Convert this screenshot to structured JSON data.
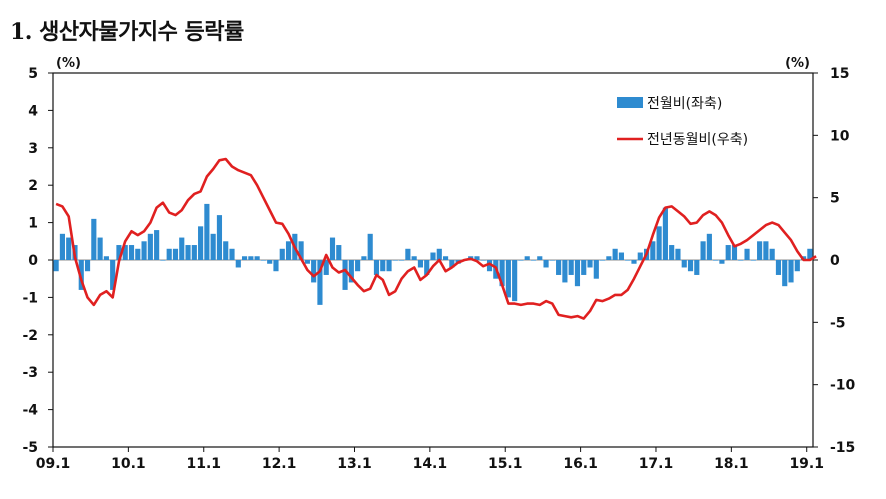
{
  "title": "1. 생산자물가지수 등락률",
  "chart_data": {
    "type": "bar+line",
    "left_unit": "(%)",
    "right_unit": "(%)",
    "x_tick_labels": [
      "09.1",
      "10.1",
      "11.1",
      "12.1",
      "13.1",
      "14.1",
      "15.1",
      "16.1",
      "17.1",
      "18.1",
      "19.1"
    ],
    "y_left": {
      "lim": [
        -5,
        5
      ],
      "ticks": [
        5,
        4,
        3,
        2,
        1,
        0,
        -1,
        -2,
        -3,
        -4,
        -5
      ]
    },
    "y_right": {
      "lim": [
        -15,
        15
      ],
      "ticks": [
        15,
        10,
        5,
        0,
        -5,
        -10,
        -15
      ]
    },
    "legend_position": "top-right",
    "start_month": "2009-01",
    "series": [
      {
        "name": "전월비(좌축)",
        "type": "bar",
        "axis": "left",
        "color": "#2e8bd0",
        "values": [
          -0.3,
          0.7,
          0.6,
          0.4,
          -0.8,
          -0.3,
          1.1,
          0.6,
          0.1,
          -0.8,
          0.4,
          0.4,
          0.4,
          0.3,
          0.5,
          0.7,
          0.8,
          0.0,
          0.3,
          0.3,
          0.6,
          0.4,
          0.4,
          0.9,
          1.5,
          0.7,
          1.2,
          0.5,
          0.3,
          -0.2,
          0.1,
          0.1,
          0.1,
          0.0,
          -0.1,
          -0.3,
          0.3,
          0.5,
          0.7,
          0.5,
          -0.1,
          -0.6,
          -1.2,
          -0.4,
          0.6,
          0.4,
          -0.8,
          -0.6,
          -0.3,
          0.1,
          0.7,
          -0.4,
          -0.3,
          -0.3,
          0.0,
          0.0,
          0.3,
          0.1,
          -0.2,
          -0.4,
          0.2,
          0.3,
          0.1,
          -0.2,
          -0.1,
          0.0,
          0.1,
          0.1,
          0.0,
          -0.3,
          -0.5,
          -0.7,
          -1.0,
          -1.1,
          0.0,
          0.1,
          0.0,
          0.1,
          -0.2,
          0.0,
          -0.4,
          -0.6,
          -0.4,
          -0.7,
          -0.4,
          -0.2,
          -0.5,
          0.0,
          0.1,
          0.3,
          0.2,
          0.0,
          -0.1,
          0.2,
          0.3,
          0.5,
          0.9,
          1.4,
          0.4,
          0.3,
          -0.2,
          -0.3,
          -0.4,
          0.5,
          0.7,
          0.0,
          -0.1,
          0.4,
          0.4,
          0.0,
          0.3,
          0.0,
          0.5,
          0.5,
          0.3,
          -0.4,
          -0.7,
          -0.6,
          -0.3,
          0.1,
          0.3
        ]
      },
      {
        "name": "전년동월비(우축)",
        "type": "line",
        "axis": "right",
        "color": "#e02020",
        "values": [
          4.5,
          4.3,
          3.5,
          0.2,
          -1.6,
          -3.0,
          -3.6,
          -2.8,
          -2.5,
          -3.0,
          -0.1,
          1.5,
          2.3,
          2.0,
          2.3,
          3.0,
          4.2,
          4.6,
          3.8,
          3.6,
          4.0,
          4.8,
          5.3,
          5.5,
          6.7,
          7.3,
          8.0,
          8.1,
          7.5,
          7.2,
          7.0,
          6.8,
          6.0,
          5.0,
          4.0,
          3.0,
          2.9,
          2.1,
          1.0,
          0.1,
          -0.8,
          -1.3,
          -0.9,
          0.4,
          -0.6,
          -1.0,
          -0.8,
          -1.4,
          -2.0,
          -2.5,
          -2.3,
          -1.2,
          -1.6,
          -2.8,
          -2.5,
          -1.5,
          -0.9,
          -0.6,
          -1.6,
          -1.2,
          -0.5,
          0.0,
          -0.9,
          -0.6,
          -0.2,
          0.0,
          0.1,
          -0.1,
          -0.5,
          -0.3,
          -0.6,
          -2.0,
          -3.5,
          -3.5,
          -3.6,
          -3.5,
          -3.5,
          -3.6,
          -3.3,
          -3.5,
          -4.4,
          -4.5,
          -4.6,
          -4.5,
          -4.7,
          -4.1,
          -3.2,
          -3.3,
          -3.1,
          -2.8,
          -2.8,
          -2.4,
          -1.5,
          -0.5,
          0.5,
          2.0,
          3.4,
          4.2,
          4.3,
          3.9,
          3.5,
          2.9,
          3.0,
          3.6,
          3.9,
          3.6,
          3.0,
          2.0,
          1.1,
          1.3,
          1.6,
          2.0,
          2.4,
          2.8,
          3.0,
          2.8,
          2.2,
          1.6,
          0.7,
          0.0,
          0.0,
          0.3
        ]
      }
    ]
  }
}
